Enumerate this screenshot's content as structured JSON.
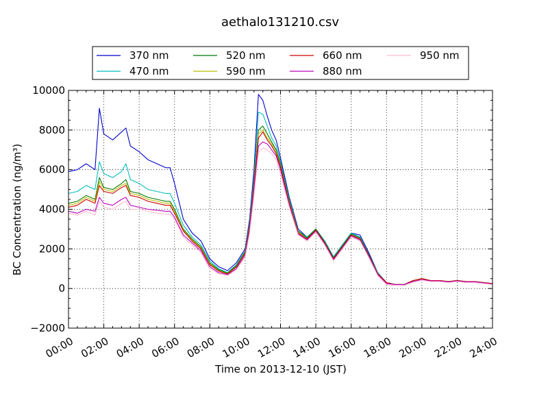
{
  "chart_data": {
    "type": "line",
    "title": "aethalo131210.csv",
    "xlabel": "Time on 2013-12-10 (JST)",
    "ylabel": "BC Concentration (ng/m³)",
    "xlim": [
      "00:00",
      "24:00"
    ],
    "ylim": [
      -2000,
      10000
    ],
    "yticks": [
      "−2000",
      "0",
      "2000",
      "4000",
      "6000",
      "8000",
      "10000"
    ],
    "xticks": [
      "00:00",
      "02:00",
      "04:00",
      "06:00",
      "08:00",
      "10:00",
      "12:00",
      "14:00",
      "16:00",
      "18:00",
      "20:00",
      "22:00",
      "24:00"
    ],
    "grid": true,
    "legend_placement": "top",
    "x": [
      "00:00",
      "00:30",
      "01:00",
      "01:30",
      "01:45",
      "02:00",
      "02:30",
      "03:00",
      "03:15",
      "03:30",
      "04:00",
      "04:30",
      "05:00",
      "05:30",
      "05:45",
      "06:00",
      "06:30",
      "07:00",
      "07:30",
      "08:00",
      "08:30",
      "09:00",
      "09:30",
      "10:00",
      "10:15",
      "10:30",
      "10:45",
      "11:00",
      "11:15",
      "11:30",
      "11:45",
      "12:00",
      "12:30",
      "13:00",
      "13:30",
      "14:00",
      "14:30",
      "15:00",
      "15:30",
      "16:00",
      "16:30",
      "17:00",
      "17:30",
      "18:00",
      "18:30",
      "19:00",
      "19:30",
      "20:00",
      "20:30",
      "21:00",
      "21:30",
      "22:00",
      "22:30",
      "23:00",
      "23:30",
      "24:00"
    ],
    "series": [
      {
        "name": "370 nm",
        "color": "#0000cc",
        "values": [
          5900,
          6000,
          6300,
          6000,
          9100,
          7800,
          7500,
          7900,
          8100,
          7200,
          6900,
          6500,
          6300,
          6100,
          6100,
          5300,
          3500,
          2800,
          2400,
          1500,
          1100,
          900,
          1300,
          2000,
          3500,
          6000,
          9800,
          9500,
          8700,
          8000,
          7500,
          6600,
          4600,
          3000,
          2600,
          3000,
          2400,
          1600,
          2200,
          2800,
          2700,
          1800,
          800,
          300,
          200,
          200,
          400,
          500,
          400,
          400,
          350,
          400,
          350,
          350,
          300,
          250
        ]
      },
      {
        "name": "470 nm",
        "color": "#00bbbb",
        "values": [
          4800,
          4900,
          5200,
          5000,
          6400,
          5800,
          5600,
          5900,
          6300,
          5500,
          5300,
          5000,
          4900,
          4800,
          4800,
          4300,
          3200,
          2600,
          2200,
          1400,
          1000,
          800,
          1200,
          1900,
          3300,
          5600,
          8900,
          8800,
          8200,
          7600,
          7200,
          6400,
          4500,
          2900,
          2600,
          3000,
          2400,
          1600,
          2200,
          2800,
          2600,
          1700,
          800,
          300,
          200,
          200,
          400,
          500,
          400,
          400,
          350,
          400,
          350,
          350,
          300,
          250
        ]
      },
      {
        "name": "520 nm",
        "color": "#007700",
        "values": [
          4300,
          4400,
          4700,
          4500,
          5600,
          5100,
          5000,
          5300,
          5500,
          4900,
          4800,
          4600,
          4500,
          4400,
          4400,
          4000,
          3000,
          2500,
          2100,
          1300,
          950,
          780,
          1150,
          1850,
          3200,
          5400,
          8000,
          8200,
          7800,
          7400,
          7000,
          6300,
          4400,
          2900,
          2550,
          3000,
          2350,
          1550,
          2150,
          2750,
          2550,
          1700,
          750,
          300,
          200,
          200,
          400,
          500,
          400,
          400,
          350,
          400,
          350,
          350,
          300,
          250
        ]
      },
      {
        "name": "590 nm",
        "color": "#bbbb00",
        "values": [
          4200,
          4300,
          4600,
          4400,
          5400,
          5000,
          4900,
          5200,
          5300,
          4800,
          4700,
          4500,
          4400,
          4300,
          4300,
          3900,
          2950,
          2450,
          2050,
          1250,
          900,
          750,
          1100,
          1800,
          3150,
          5300,
          7800,
          8000,
          7600,
          7300,
          6900,
          6200,
          4350,
          2850,
          2500,
          2950,
          2300,
          1500,
          2100,
          2700,
          2500,
          1650,
          750,
          300,
          200,
          200,
          400,
          500,
          400,
          400,
          350,
          400,
          350,
          350,
          300,
          250
        ]
      },
      {
        "name": "660 nm",
        "color": "#cc0000",
        "values": [
          4100,
          4200,
          4500,
          4300,
          5200,
          4900,
          4800,
          5100,
          5200,
          4700,
          4600,
          4400,
          4300,
          4200,
          4200,
          3800,
          2900,
          2400,
          2000,
          1200,
          880,
          730,
          1080,
          1780,
          3100,
          5200,
          7600,
          7900,
          7500,
          7200,
          6800,
          6150,
          4300,
          2800,
          2500,
          2950,
          2300,
          1500,
          2100,
          2700,
          2500,
          1650,
          750,
          300,
          200,
          200,
          400,
          500,
          400,
          400,
          350,
          400,
          350,
          350,
          300,
          250
        ]
      },
      {
        "name": "880 nm",
        "color": "#bb00bb",
        "values": [
          3900,
          3800,
          4000,
          3900,
          4600,
          4300,
          4200,
          4500,
          4600,
          4200,
          4100,
          4000,
          3950,
          3900,
          3900,
          3600,
          2700,
          2300,
          1900,
          1100,
          800,
          700,
          1000,
          1700,
          2950,
          5000,
          7200,
          7400,
          7300,
          7000,
          6700,
          6000,
          4200,
          2750,
          2450,
          2900,
          2250,
          1450,
          2050,
          2650,
          2450,
          1600,
          700,
          250,
          200,
          200,
          350,
          450,
          380,
          380,
          330,
          380,
          330,
          330,
          280,
          230
        ]
      },
      {
        "name": "950 nm",
        "color": "#ffbbcc",
        "values": [
          3800,
          3700,
          3900,
          3700,
          4400,
          4100,
          4000,
          4300,
          4400,
          4000,
          4000,
          3900,
          3800,
          3750,
          3750,
          3500,
          2600,
          2200,
          1800,
          1000,
          750,
          650,
          950,
          1600,
          2800,
          4700,
          6900,
          7100,
          7000,
          6800,
          6500,
          5800,
          4100,
          2700,
          2400,
          2850,
          2200,
          1400,
          2000,
          2600,
          2400,
          1550,
          650,
          200,
          150,
          150,
          300,
          420,
          350,
          350,
          300,
          350,
          300,
          300,
          250,
          200
        ]
      }
    ]
  }
}
